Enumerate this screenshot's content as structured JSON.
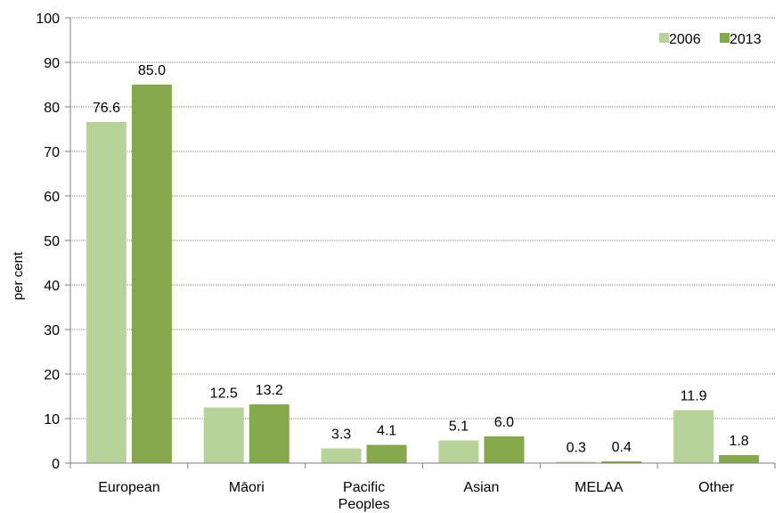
{
  "chart_data": {
    "type": "bar",
    "title": "",
    "xlabel": "",
    "ylabel": "per cent",
    "ylim": [
      0,
      100
    ],
    "yticks": [
      0,
      10,
      20,
      30,
      40,
      50,
      60,
      70,
      80,
      90,
      100
    ],
    "grid": true,
    "legend_position": "top-right",
    "categories": [
      [
        "European"
      ],
      [
        "Māori"
      ],
      [
        "Pacific",
        "Peoples"
      ],
      [
        "Asian"
      ],
      [
        "MELAA"
      ],
      [
        "Other"
      ]
    ],
    "series": [
      {
        "name": "2006",
        "color": "#b8d39a",
        "values": [
          76.6,
          12.5,
          3.3,
          5.1,
          0.3,
          11.9
        ],
        "labels": [
          "76.6",
          "12.5",
          "3.3",
          "5.1",
          "0.3",
          "11.9"
        ]
      },
      {
        "name": "2013",
        "color": "#86a84c",
        "values": [
          85.0,
          13.2,
          4.1,
          6.0,
          0.4,
          1.8
        ],
        "labels": [
          "85.0",
          "13.2",
          "4.1",
          "6.0",
          "0.4",
          "1.8"
        ]
      }
    ]
  }
}
